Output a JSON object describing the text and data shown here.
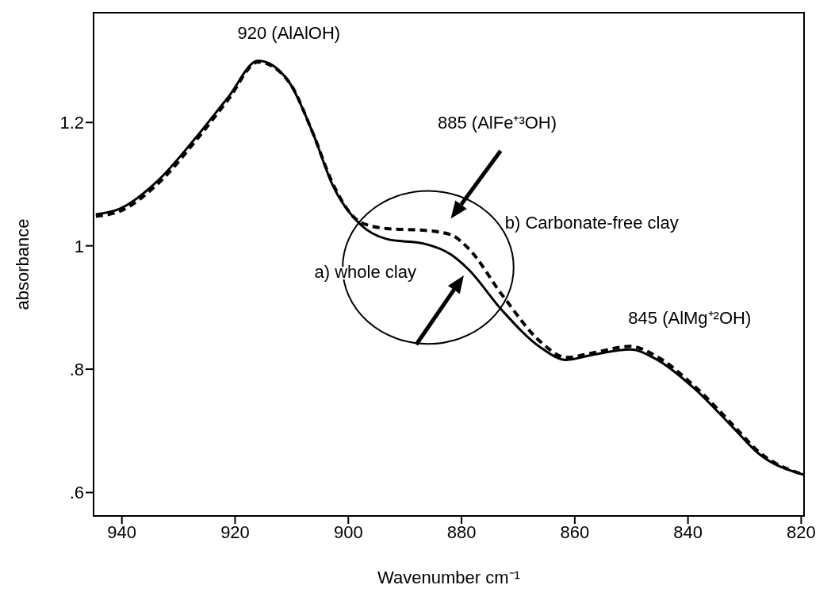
{
  "chart_data": {
    "type": "line",
    "xlabel": "Wavenumber cm⁻¹",
    "ylabel": "absorbance",
    "xlim": [
      945,
      819.5
    ],
    "xticks": [
      940,
      920,
      900,
      880,
      860,
      840,
      820
    ],
    "ylim": [
      0.562,
      1.378
    ],
    "yticks": [
      {
        "value": 0.6,
        "label": ".6"
      },
      {
        "value": 0.8,
        "label": ".8"
      },
      {
        "value": 1,
        "label": "1"
      },
      {
        "value": 1.2,
        "label": "1.2"
      }
    ],
    "grid": false,
    "legend": false,
    "marker": "none",
    "annotations": [
      "920 (AlAlOH)",
      "885 (AlFe⁺³OH)",
      "845 (AlMg⁺²OH)"
    ],
    "series": [
      {
        "name": "a) whole clay",
        "color": "#000000",
        "line_style": "solid",
        "x": [
          944.6,
          940.4,
          933.6,
          926.8,
          921.3,
          915.9,
          910.5,
          906.4,
          902.7,
          897.8,
          893.2,
          886.4,
          881.9,
          878.8,
          872.8,
          866,
          861.5,
          857,
          850.2,
          845.6,
          838.8,
          832,
          827.5,
          819.6
        ],
        "values": [
          1.051,
          1.06,
          1.106,
          1.177,
          1.24,
          1.3,
          1.266,
          1.186,
          1.097,
          1.034,
          1.011,
          1.003,
          0.986,
          0.962,
          0.895,
          0.835,
          0.815,
          0.823,
          0.832,
          0.816,
          0.768,
          0.705,
          0.663,
          0.629
        ]
      },
      {
        "name": "b) Carbonate-free clay",
        "color": "#000000",
        "line_style": "dashed",
        "x": [
          944.6,
          940.4,
          933.6,
          926.8,
          921.3,
          915.9,
          910.5,
          906.4,
          902.7,
          897.8,
          893.2,
          886.4,
          881.9,
          878.8,
          872.8,
          866,
          861.5,
          857,
          850.2,
          845.6,
          838.8,
          832,
          827.5,
          819.6
        ],
        "values": [
          1.048,
          1.056,
          1.101,
          1.172,
          1.236,
          1.298,
          1.266,
          1.186,
          1.1,
          1.038,
          1.028,
          1.025,
          1.018,
          0.996,
          0.92,
          0.844,
          0.819,
          0.826,
          0.837,
          0.821,
          0.772,
          0.709,
          0.666,
          0.629
        ]
      }
    ]
  }
}
